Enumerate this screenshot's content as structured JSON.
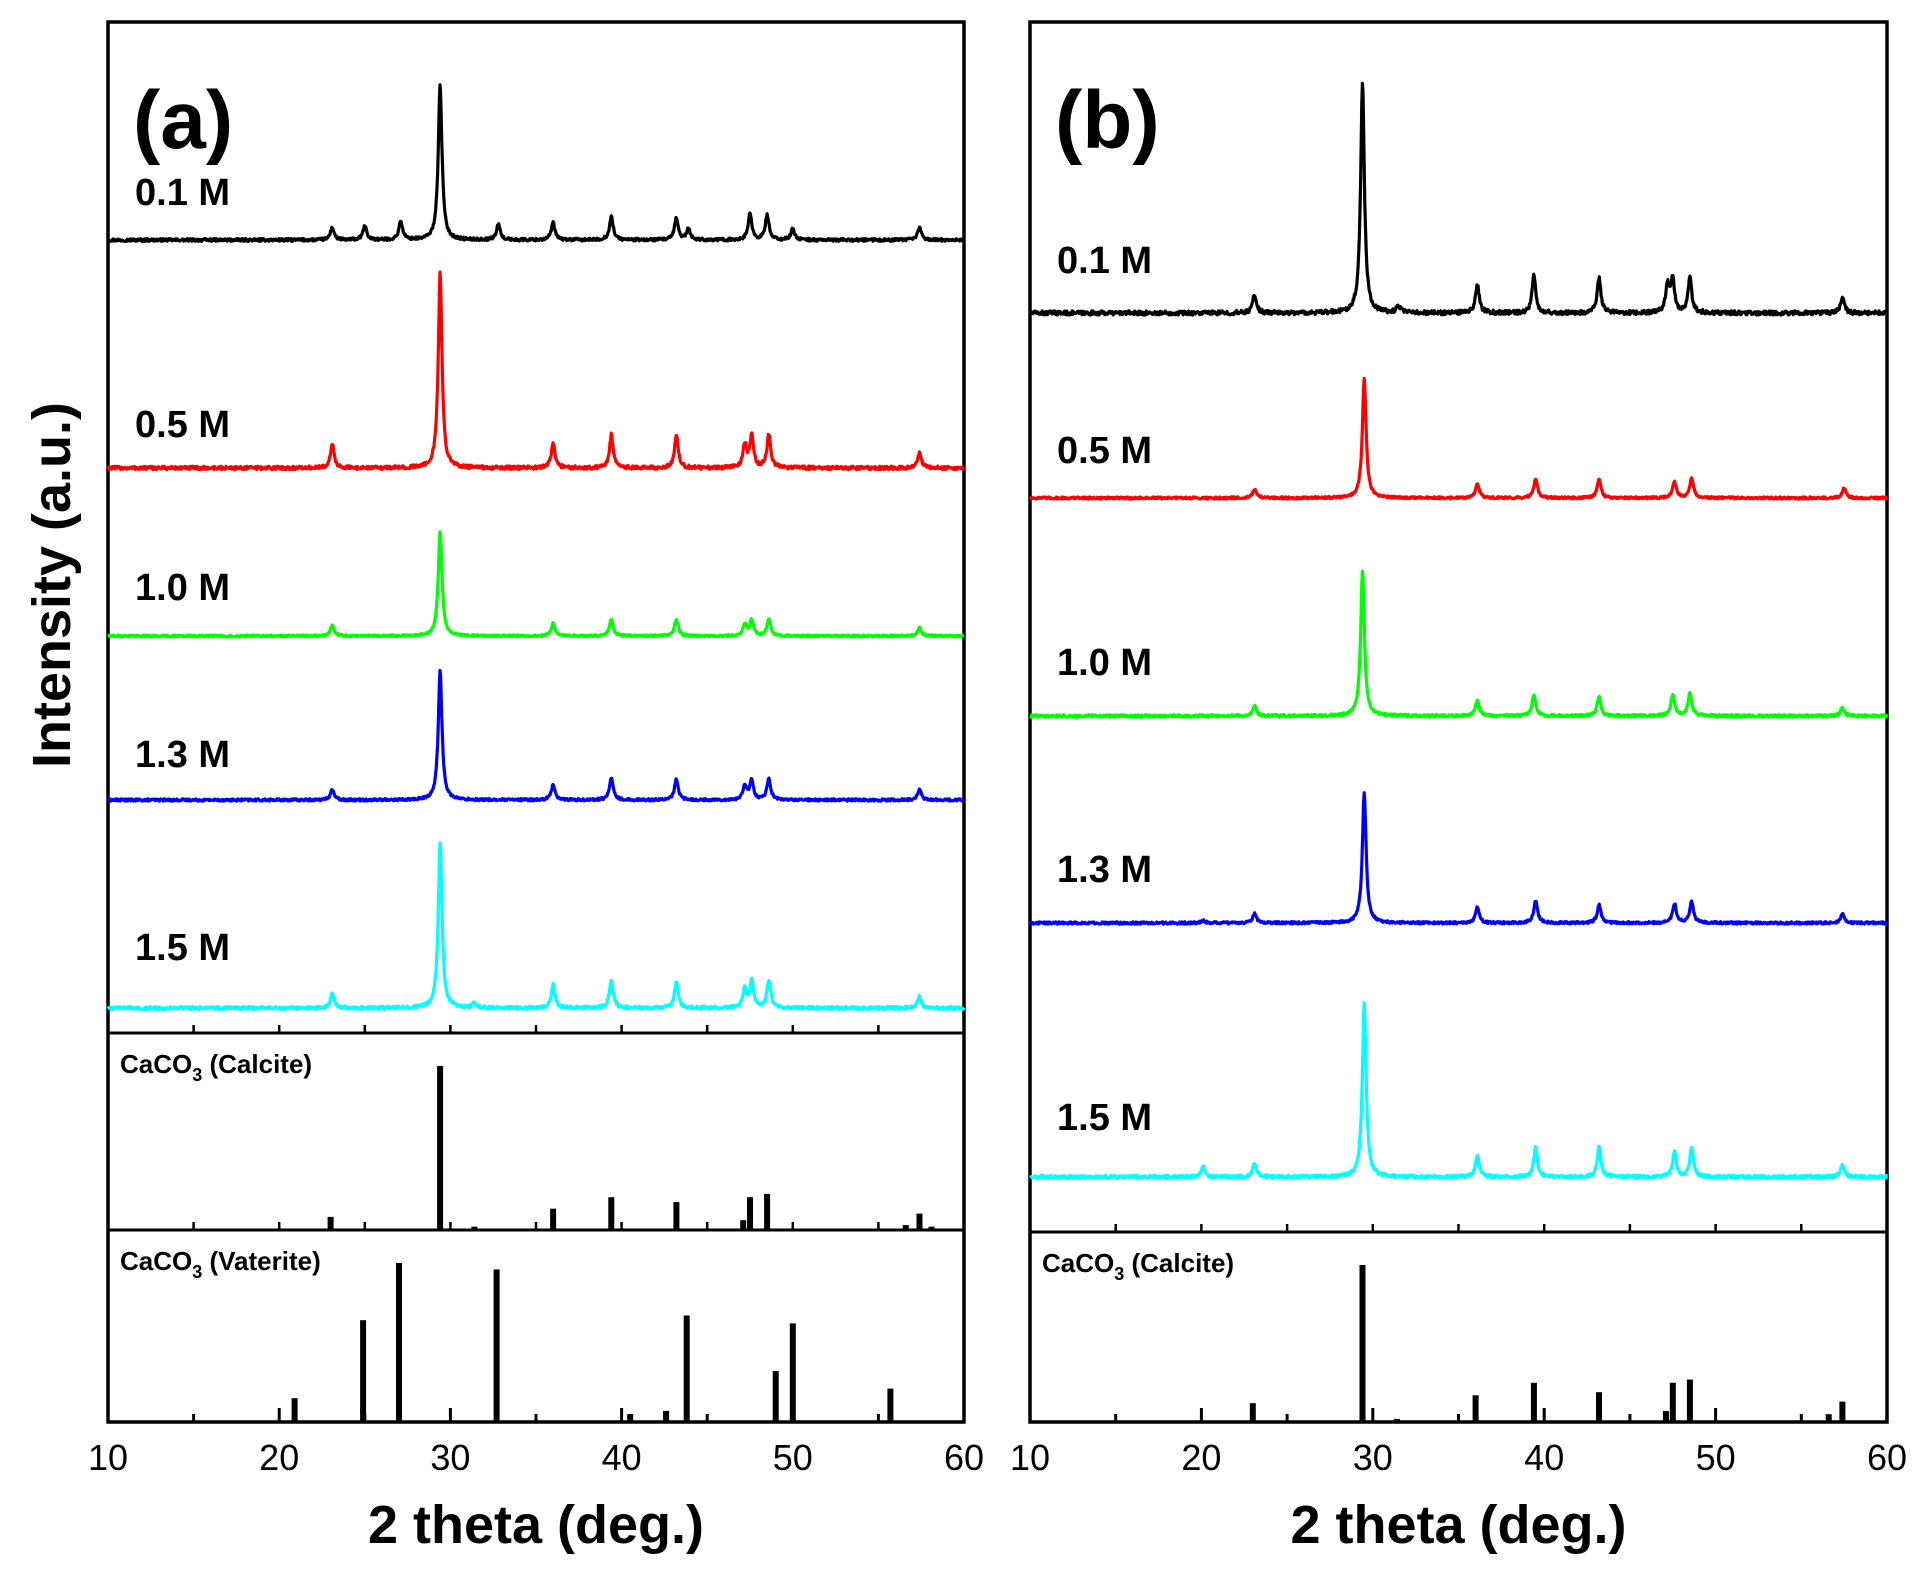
{
  "chart_data": [
    {
      "panel": "a",
      "type": "line",
      "panel_label": "(a)",
      "xlabel": "2 theta (deg.)",
      "ylabel": "Intensity (a.u.)",
      "xlim": [
        10,
        60
      ],
      "xticks": [
        "10",
        "20",
        "30",
        "40",
        "50",
        "60"
      ],
      "grid": false,
      "legend": "none",
      "series": [
        {
          "name": "0.1 M",
          "color": "#000000",
          "amplitude": 1.0,
          "peaks": [
            [
              23.1,
              0.08
            ],
            [
              25.0,
              0.09
            ],
            [
              27.1,
              0.12
            ],
            [
              29.4,
              1.0
            ],
            [
              32.8,
              0.1
            ],
            [
              36.0,
              0.11
            ],
            [
              39.4,
              0.15
            ],
            [
              43.2,
              0.14
            ],
            [
              43.9,
              0.07
            ],
            [
              47.5,
              0.17
            ],
            [
              48.5,
              0.16
            ],
            [
              50.0,
              0.07
            ],
            [
              57.4,
              0.08
            ]
          ]
        },
        {
          "name": "0.5 M",
          "color": "#ff0000",
          "amplitude": 1.0,
          "peaks": [
            [
              23.1,
              0.12
            ],
            [
              29.4,
              1.0
            ],
            [
              36.0,
              0.13
            ],
            [
              39.4,
              0.17
            ],
            [
              43.2,
              0.17
            ],
            [
              47.2,
              0.12
            ],
            [
              47.6,
              0.16
            ],
            [
              48.6,
              0.17
            ],
            [
              57.4,
              0.08
            ]
          ]
        },
        {
          "name": "1.0 M",
          "color": "#00ff00",
          "amplitude": 1.0,
          "peaks": [
            [
              23.1,
              0.1
            ],
            [
              29.4,
              1.0
            ],
            [
              36.0,
              0.12
            ],
            [
              39.4,
              0.16
            ],
            [
              43.2,
              0.16
            ],
            [
              47.2,
              0.11
            ],
            [
              47.6,
              0.15
            ],
            [
              48.6,
              0.16
            ],
            [
              57.4,
              0.08
            ]
          ]
        },
        {
          "name": "1.3 M",
          "color": "#0000ff",
          "amplitude": 1.0,
          "peaks": [
            [
              23.1,
              0.08
            ],
            [
              29.4,
              1.0
            ],
            [
              36.0,
              0.12
            ],
            [
              39.4,
              0.17
            ],
            [
              43.2,
              0.16
            ],
            [
              47.2,
              0.11
            ],
            [
              47.6,
              0.15
            ],
            [
              48.6,
              0.16
            ],
            [
              57.4,
              0.08
            ]
          ]
        },
        {
          "name": "1.5 M",
          "color": "#00ffff",
          "amplitude": 1.0,
          "peaks": [
            [
              23.1,
              0.09
            ],
            [
              29.4,
              1.0
            ],
            [
              31.4,
              0.03
            ],
            [
              36.0,
              0.14
            ],
            [
              39.4,
              0.17
            ],
            [
              43.2,
              0.16
            ],
            [
              47.2,
              0.12
            ],
            [
              47.6,
              0.16
            ],
            [
              48.6,
              0.17
            ],
            [
              57.4,
              0.07
            ]
          ]
        }
      ],
      "references": [
        {
          "name_main": "CaCO",
          "name_sub": "3",
          "name_suffix": " (Calcite)",
          "sticks": [
            [
              23.0,
              0.08
            ],
            [
              29.4,
              1.0
            ],
            [
              31.4,
              0.02
            ],
            [
              36.0,
              0.13
            ],
            [
              39.4,
              0.2
            ],
            [
              43.2,
              0.17
            ],
            [
              47.1,
              0.06
            ],
            [
              47.5,
              0.2
            ],
            [
              48.5,
              0.22
            ],
            [
              56.6,
              0.03
            ],
            [
              57.4,
              0.1
            ],
            [
              58.1,
              0.02
            ]
          ]
        },
        {
          "name_main": "CaCO",
          "name_sub": "3",
          "name_suffix": " (Vaterite)",
          "sticks": [
            [
              20.9,
              0.15
            ],
            [
              24.9,
              0.64
            ],
            [
              27.0,
              1.0
            ],
            [
              32.7,
              0.96
            ],
            [
              40.5,
              0.05
            ],
            [
              42.6,
              0.07
            ],
            [
              43.8,
              0.67
            ],
            [
              49.0,
              0.32
            ],
            [
              50.0,
              0.62
            ],
            [
              55.7,
              0.21
            ]
          ]
        }
      ]
    },
    {
      "panel": "b",
      "type": "line",
      "panel_label": "(b)",
      "xlabel": "2 theta (deg.)",
      "xlim": [
        10,
        60
      ],
      "xticks": [
        "10",
        "20",
        "30",
        "40",
        "50",
        "60"
      ],
      "grid": false,
      "legend": "none",
      "series": [
        {
          "name": "0.1 M",
          "color": "#000000",
          "amplitude": 1.0,
          "peaks": [
            [
              23.1,
              0.08
            ],
            [
              29.4,
              1.0
            ],
            [
              31.5,
              0.03
            ],
            [
              36.1,
              0.12
            ],
            [
              39.4,
              0.16
            ],
            [
              43.2,
              0.15
            ],
            [
              47.2,
              0.12
            ],
            [
              47.5,
              0.14
            ],
            [
              48.5,
              0.15
            ],
            [
              57.4,
              0.07
            ]
          ]
        },
        {
          "name": "0.5 M",
          "color": "#ff0000",
          "amplitude": 1.0,
          "peaks": [
            [
              23.1,
              0.07
            ],
            [
              29.5,
              1.0
            ],
            [
              36.1,
              0.12
            ],
            [
              39.5,
              0.16
            ],
            [
              43.2,
              0.15
            ],
            [
              47.6,
              0.14
            ],
            [
              48.6,
              0.17
            ],
            [
              57.5,
              0.08
            ]
          ]
        },
        {
          "name": "1.0 M",
          "color": "#00ff00",
          "amplitude": 1.0,
          "peaks": [
            [
              23.1,
              0.07
            ],
            [
              29.4,
              1.0
            ],
            [
              36.1,
              0.11
            ],
            [
              39.4,
              0.15
            ],
            [
              43.2,
              0.13
            ],
            [
              47.5,
              0.15
            ],
            [
              48.5,
              0.16
            ],
            [
              57.4,
              0.06
            ]
          ]
        },
        {
          "name": "1.3 M",
          "color": "#0000ff",
          "amplitude": 1.0,
          "peaks": [
            [
              20.1,
              0.02
            ],
            [
              23.1,
              0.07
            ],
            [
              29.5,
              1.0
            ],
            [
              36.1,
              0.12
            ],
            [
              39.5,
              0.17
            ],
            [
              43.2,
              0.14
            ],
            [
              47.6,
              0.15
            ],
            [
              48.6,
              0.16
            ],
            [
              57.4,
              0.07
            ]
          ]
        },
        {
          "name": "1.5 M",
          "color": "#00ffff",
          "amplitude": 1.0,
          "peaks": [
            [
              20.1,
              0.06
            ],
            [
              23.1,
              0.08
            ],
            [
              29.5,
              1.0
            ],
            [
              36.1,
              0.12
            ],
            [
              39.5,
              0.17
            ],
            [
              43.2,
              0.17
            ],
            [
              47.6,
              0.15
            ],
            [
              48.6,
              0.17
            ],
            [
              57.4,
              0.07
            ]
          ]
        }
      ],
      "references": [
        {
          "name_main": "CaCO",
          "name_sub": "3",
          "name_suffix": " (Calcite)",
          "sticks": [
            [
              23.0,
              0.12
            ],
            [
              29.4,
              1.0
            ],
            [
              31.4,
              0.02
            ],
            [
              36.0,
              0.17
            ],
            [
              39.4,
              0.25
            ],
            [
              43.2,
              0.19
            ],
            [
              47.1,
              0.07
            ],
            [
              47.5,
              0.25
            ],
            [
              48.5,
              0.27
            ],
            [
              56.6,
              0.05
            ],
            [
              57.4,
              0.13
            ]
          ]
        }
      ]
    }
  ]
}
